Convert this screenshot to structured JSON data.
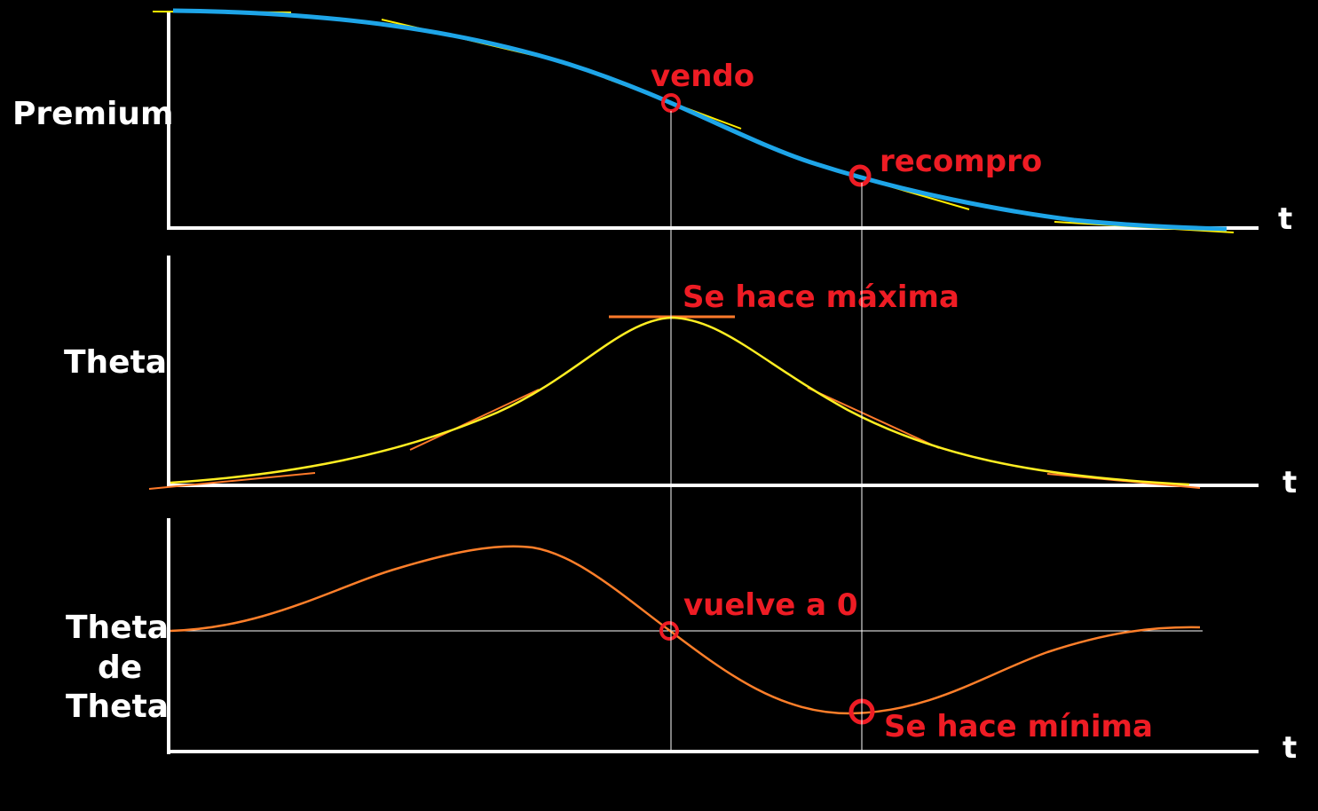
{
  "colors": {
    "background": "#000000",
    "axis": "#ffffff",
    "premium_curve": "#1ea5e8",
    "tangent_yellow": "#ffee00",
    "theta_curve": "#ffee22",
    "tangent_orange": "#ff7a2a",
    "theta_theta_curve": "#ff7f2a",
    "annotation": "#ee1c24",
    "guide_line": "#ffffff"
  },
  "panels": {
    "premium": {
      "label": "Premium",
      "axis_label": "t",
      "annotations": {
        "sell": "vendo",
        "buy_back": "recompro"
      }
    },
    "theta": {
      "label": "Theta",
      "axis_label": "t",
      "annotations": {
        "max": "Se hace máxima"
      }
    },
    "theta_theta": {
      "label_lines": [
        "Theta",
        "de",
        "Theta"
      ],
      "axis_label": "t",
      "annotations": {
        "zero": "vuelve a 0",
        "min": "Se hace mínima"
      }
    }
  }
}
